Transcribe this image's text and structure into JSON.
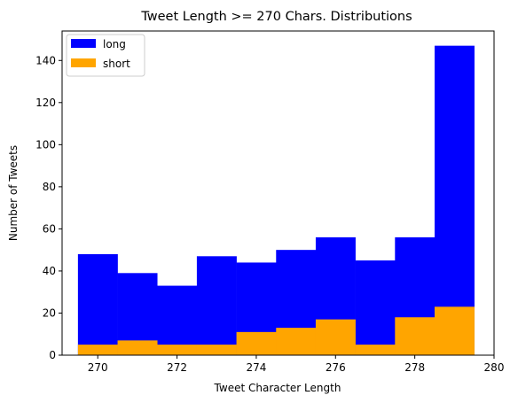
{
  "chart_data": {
    "type": "bar",
    "title": "Tweet Length >= 270 Chars. Distributions",
    "xlabel": "Tweet Character Length",
    "ylabel": "Number of Tweets",
    "xlim": [
      269.1,
      280
    ],
    "ylim": [
      0,
      154
    ],
    "xticks": [
      270,
      272,
      274,
      276,
      278,
      280
    ],
    "yticks": [
      0,
      20,
      40,
      60,
      80,
      100,
      120,
      140
    ],
    "bin_edges": [
      269.5,
      270.5,
      271.5,
      272.5,
      273.5,
      274.5,
      275.5,
      276.5,
      277.5,
      278.5,
      279.5
    ],
    "legend_position": "upper-left",
    "grid": false,
    "series": [
      {
        "name": "long",
        "color": "#0000ff",
        "values": [
          48,
          39,
          33,
          47,
          44,
          50,
          56,
          45,
          56,
          147
        ]
      },
      {
        "name": "short",
        "color": "#ffa500",
        "values": [
          5,
          7,
          5,
          5,
          11,
          13,
          17,
          5,
          18,
          23
        ]
      }
    ]
  }
}
